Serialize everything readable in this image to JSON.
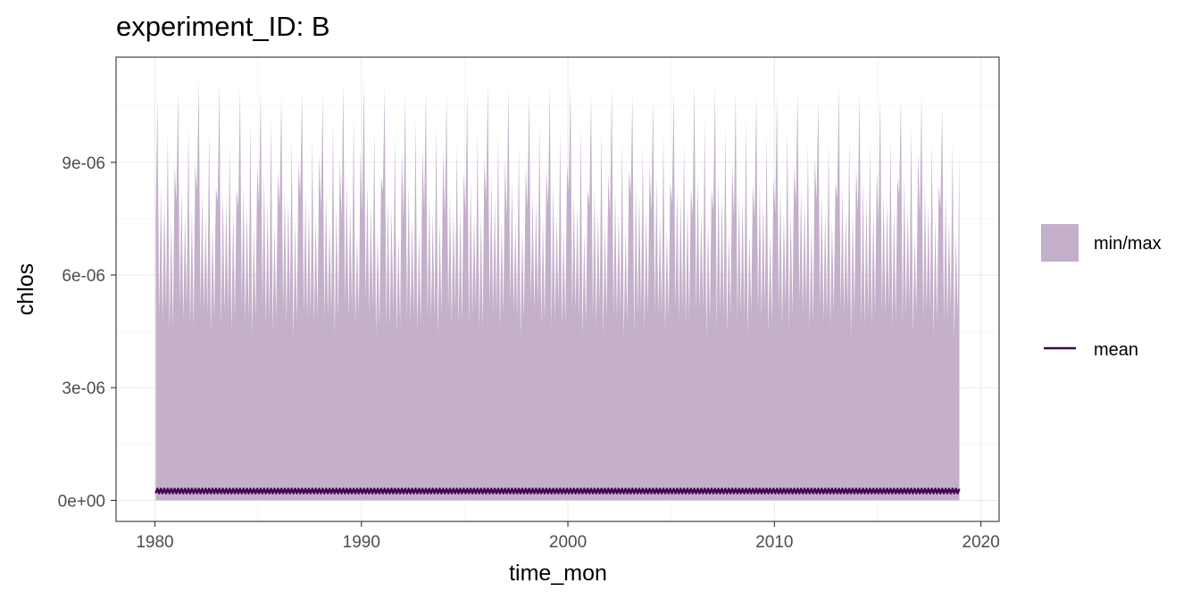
{
  "chart_data": {
    "type": "area",
    "title": "experiment_ID: B",
    "xlabel": "time_mon",
    "ylabel": "chlos",
    "xlim": [
      1978.12,
      2020.88
    ],
    "ylim": [
      -5.6e-07,
      1.18e-05
    ],
    "x_ticks": [
      1980,
      1990,
      2000,
      2010,
      2020
    ],
    "x_tick_labels": [
      "1980",
      "1990",
      "2000",
      "2010",
      "2020"
    ],
    "y_ticks": [
      0,
      3e-06,
      6e-06,
      9e-06
    ],
    "y_tick_labels": [
      "0e+00",
      "3e-06",
      "6e-06",
      "9e-06"
    ],
    "grid": true,
    "legend_position": "right",
    "x_range": [
      1980.04,
      2018.96
    ],
    "series": [
      {
        "name": "min/max",
        "kind": "ribbon",
        "color": "#C4B0CA",
        "min": 0,
        "max_mean": 6e-06,
        "max_trough": 4.5e-06,
        "annual_max_peaks": [
          1.07e-05,
          1.09e-05,
          1.12e-05,
          1.11e-05,
          1.1e-05,
          1.09e-05,
          1.08e-05,
          1.09e-05,
          1.08e-05,
          1.11e-05,
          1.12e-05,
          1.1e-05,
          1.08e-05,
          1.09e-05,
          1.08e-05,
          1.09e-05,
          1.11e-05,
          1.1e-05,
          1.09e-05,
          1.1e-05,
          1.11e-05,
          1.08e-05,
          1.1e-05,
          1.08e-05,
          1.07e-05,
          1.09e-05,
          1.11e-05,
          1.1e-05,
          1.09e-05,
          1.08e-05,
          1.08e-05,
          1.09e-05,
          1.07e-05,
          1.1e-05,
          1.09e-05,
          1.08e-05,
          1.07e-05,
          1.08e-05,
          1.05e-05
        ]
      },
      {
        "name": "mean",
        "kind": "line",
        "color": "#440154",
        "base": 2.5e-07,
        "amplitude": 6e-08
      }
    ]
  }
}
